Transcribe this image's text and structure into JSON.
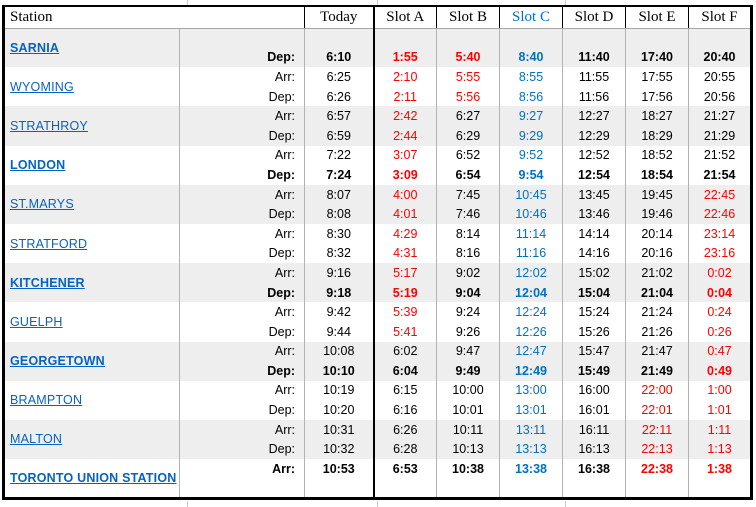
{
  "colors": {
    "night_red": "#ff0000",
    "slot_c_blue": "#0070c0",
    "station_link_blue": "#0563c1",
    "band_gray": "#eeeeee"
  },
  "header": {
    "station_label": "Station",
    "columns": [
      {
        "label": "Today",
        "color": "k"
      },
      {
        "label": "Slot A",
        "color": "k"
      },
      {
        "label": "Slot B",
        "color": "k"
      },
      {
        "label": "Slot C",
        "color": "b"
      },
      {
        "label": "Slot D",
        "color": "k"
      },
      {
        "label": "Slot E",
        "color": "k"
      },
      {
        "label": "Slot F",
        "color": "k"
      }
    ]
  },
  "stations": [
    {
      "name": "SARNIA",
      "bold": true,
      "rows": [
        {
          "label": "",
          "bold": false,
          "times": [
            "",
            "",
            "",
            "",
            "",
            "",
            ""
          ],
          "colors": "kkkkkkk"
        },
        {
          "label": "Dep:",
          "bold": true,
          "times": [
            "6:10",
            "1:55",
            "5:40",
            "8:40",
            "11:40",
            "17:40",
            "20:40"
          ],
          "colors": "krrbkkk"
        }
      ]
    },
    {
      "name": "WYOMING",
      "bold": false,
      "rows": [
        {
          "label": "Arr:",
          "bold": false,
          "times": [
            "6:25",
            "2:10",
            "5:55",
            "8:55",
            "11:55",
            "17:55",
            "20:55"
          ],
          "colors": "krrbkkk"
        },
        {
          "label": "Dep:",
          "bold": false,
          "times": [
            "6:26",
            "2:11",
            "5:56",
            "8:56",
            "11:56",
            "17:56",
            "20:56"
          ],
          "colors": "krrbkkk"
        }
      ]
    },
    {
      "name": "STRATHROY",
      "bold": false,
      "rows": [
        {
          "label": "Arr:",
          "bold": false,
          "times": [
            "6:57",
            "2:42",
            "6:27",
            "9:27",
            "12:27",
            "18:27",
            "21:27"
          ],
          "colors": "krkbkkk"
        },
        {
          "label": "Dep:",
          "bold": false,
          "times": [
            "6:59",
            "2:44",
            "6:29",
            "9:29",
            "12:29",
            "18:29",
            "21:29"
          ],
          "colors": "krkbkkk"
        }
      ]
    },
    {
      "name": "LONDON",
      "bold": true,
      "rows": [
        {
          "label": "Arr:",
          "bold": false,
          "times": [
            "7:22",
            "3:07",
            "6:52",
            "9:52",
            "12:52",
            "18:52",
            "21:52"
          ],
          "colors": "krkbkkk"
        },
        {
          "label": "Dep:",
          "bold": true,
          "times": [
            "7:24",
            "3:09",
            "6:54",
            "9:54",
            "12:54",
            "18:54",
            "21:54"
          ],
          "colors": "krkbkkk"
        }
      ]
    },
    {
      "name": "ST.MARYS",
      "bold": false,
      "rows": [
        {
          "label": "Arr:",
          "bold": false,
          "times": [
            "8:07",
            "4:00",
            "7:45",
            "10:45",
            "13:45",
            "19:45",
            "22:45"
          ],
          "colors": "krkbkkr"
        },
        {
          "label": "Dep:",
          "bold": false,
          "times": [
            "8:08",
            "4:01",
            "7:46",
            "10:46",
            "13:46",
            "19:46",
            "22:46"
          ],
          "colors": "krkbkkr"
        }
      ]
    },
    {
      "name": "STRATFORD",
      "bold": false,
      "rows": [
        {
          "label": "Arr:",
          "bold": false,
          "times": [
            "8:30",
            "4:29",
            "8:14",
            "11:14",
            "14:14",
            "20:14",
            "23:14"
          ],
          "colors": "krkbkkr"
        },
        {
          "label": "Dep:",
          "bold": false,
          "times": [
            "8:32",
            "4:31",
            "8:16",
            "11:16",
            "14:16",
            "20:16",
            "23:16"
          ],
          "colors": "krkbkkr"
        }
      ]
    },
    {
      "name": "KITCHENER",
      "bold": true,
      "rows": [
        {
          "label": "Arr:",
          "bold": false,
          "times": [
            "9:16",
            "5:17",
            "9:02",
            "12:02",
            "15:02",
            "21:02",
            "0:02"
          ],
          "colors": "krkbkkr"
        },
        {
          "label": "Dep:",
          "bold": true,
          "times": [
            "9:18",
            "5:19",
            "9:04",
            "12:04",
            "15:04",
            "21:04",
            "0:04"
          ],
          "colors": "krkbkkr"
        }
      ]
    },
    {
      "name": "GUELPH",
      "bold": false,
      "rows": [
        {
          "label": "Arr:",
          "bold": false,
          "times": [
            "9:42",
            "5:39",
            "9:24",
            "12:24",
            "15:24",
            "21:24",
            "0:24"
          ],
          "colors": "krkbkkr"
        },
        {
          "label": "Dep:",
          "bold": false,
          "times": [
            "9:44",
            "5:41",
            "9:26",
            "12:26",
            "15:26",
            "21:26",
            "0:26"
          ],
          "colors": "krkbkkr"
        }
      ]
    },
    {
      "name": "GEORGETOWN",
      "bold": true,
      "rows": [
        {
          "label": "Arr:",
          "bold": false,
          "times": [
            "10:08",
            "6:02",
            "9:47",
            "12:47",
            "15:47",
            "21:47",
            "0:47"
          ],
          "colors": "kkkbkkr"
        },
        {
          "label": "Dep:",
          "bold": true,
          "times": [
            "10:10",
            "6:04",
            "9:49",
            "12:49",
            "15:49",
            "21:49",
            "0:49"
          ],
          "colors": "kkkbkkr"
        }
      ]
    },
    {
      "name": "BRAMPTON",
      "bold": false,
      "rows": [
        {
          "label": "Arr:",
          "bold": false,
          "times": [
            "10:19",
            "6:15",
            "10:00",
            "13:00",
            "16:00",
            "22:00",
            "1:00"
          ],
          "colors": "kkkbkrr"
        },
        {
          "label": "Dep:",
          "bold": false,
          "times": [
            "10:20",
            "6:16",
            "10:01",
            "13:01",
            "16:01",
            "22:01",
            "1:01"
          ],
          "colors": "kkkbkrr"
        }
      ]
    },
    {
      "name": "MALTON",
      "bold": false,
      "rows": [
        {
          "label": "Arr:",
          "bold": false,
          "times": [
            "10:31",
            "6:26",
            "10:11",
            "13:11",
            "16:11",
            "22:11",
            "1:11"
          ],
          "colors": "kkkbkrr"
        },
        {
          "label": "Dep:",
          "bold": false,
          "times": [
            "10:32",
            "6:28",
            "10:13",
            "13:13",
            "16:13",
            "22:13",
            "1:13"
          ],
          "colors": "kkkbkrr"
        }
      ]
    },
    {
      "name": "TORONTO UNION STATION",
      "bold": true,
      "rows": [
        {
          "label": "Arr:",
          "bold": true,
          "times": [
            "10:53",
            "6:53",
            "10:38",
            "13:38",
            "16:38",
            "22:38",
            "1:38"
          ],
          "colors": "kkkbkrr"
        },
        {
          "label": "",
          "bold": false,
          "times": [
            "",
            "",
            "",
            "",
            "",
            "",
            ""
          ],
          "colors": "kkkkkkk"
        }
      ]
    }
  ]
}
